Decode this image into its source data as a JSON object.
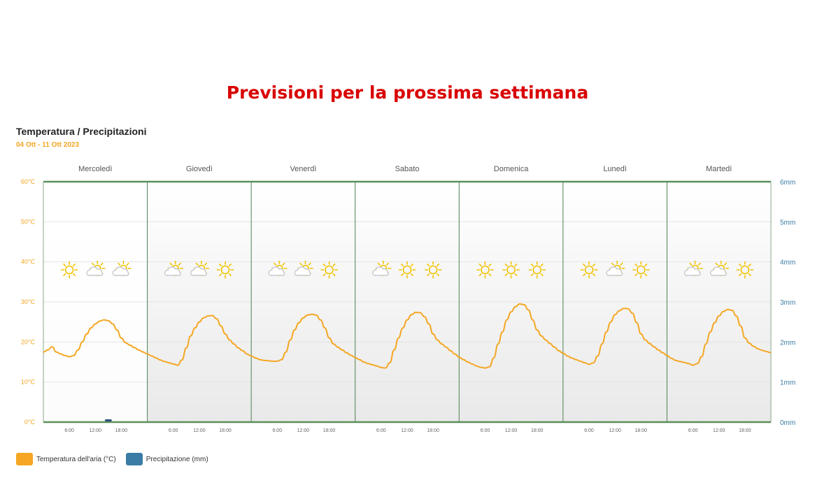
{
  "page": {
    "title": "Previsioni per la prossima settimana"
  },
  "colors": {
    "temperature": "#f5a623",
    "precipitation": "#3a7ca5",
    "precip_bar": "#2f4f7f",
    "axis_green": "#5a8f5a",
    "title_red": "#d90000",
    "sun": "#f2c200",
    "cloud": "#c8c8c8"
  },
  "legend": {
    "temperature_label": "Temperatura dell'aria (°C)",
    "precipitation_label": "Precipitazione (mm)"
  },
  "chart_data": {
    "type": "line",
    "title": "Temperatura / Precipitazioni",
    "subtitle": "04 Ott - 11 Ott 2023",
    "grid": true,
    "days": [
      "Mercoledì",
      "Giovedì",
      "Venerdì",
      "Sabato",
      "Domenica",
      "Lunedì",
      "Martedì"
    ],
    "x_ticks": [
      "6:00",
      "12:00",
      "18:00"
    ],
    "y_left": {
      "ticks": [
        "0°C",
        "10°C",
        "20°C",
        "30°C",
        "40°C",
        "50°C",
        "60°C"
      ],
      "ylim": [
        0,
        60
      ]
    },
    "y_right": {
      "ticks": [
        "0mm",
        "1mm",
        "2mm",
        "3mm",
        "4mm",
        "5mm",
        "6mm"
      ],
      "ylim": [
        0,
        6
      ]
    },
    "weather_icons": [
      [
        "sun",
        "sun-cloud",
        "sun-cloud"
      ],
      [
        "sun-cloud",
        "sun-cloud",
        "sun"
      ],
      [
        "sun-cloud",
        "sun-cloud",
        "sun"
      ],
      [
        "sun-cloud",
        "sun",
        "sun"
      ],
      [
        "sun",
        "sun",
        "sun"
      ],
      [
        "sun",
        "sun-cloud",
        "sun"
      ],
      [
        "sun-cloud",
        "sun-cloud",
        "sun"
      ]
    ],
    "series": [
      {
        "name": "Temperatura dell'aria (°C)",
        "axis": "left",
        "hours": [
          0,
          1,
          2,
          3,
          4,
          5,
          6,
          7,
          8,
          9,
          10,
          11,
          12,
          13,
          14,
          15,
          16,
          17,
          18,
          19,
          20,
          21,
          22,
          23,
          24
        ],
        "days_values": [
          [
            17.5,
            18.0,
            18.8,
            17.5,
            17.0,
            16.6,
            16.3,
            16.6,
            18.0,
            20.0,
            22.0,
            23.5,
            24.5,
            25.2,
            25.5,
            25.3,
            24.5,
            23.0,
            21.0,
            19.8,
            19.2,
            18.6,
            18.0,
            17.5,
            17.0
          ],
          [
            17.0,
            16.5,
            16.0,
            15.5,
            15.1,
            14.8,
            14.5,
            14.2,
            15.5,
            18.5,
            21.5,
            23.5,
            25.0,
            26.0,
            26.5,
            26.6,
            25.8,
            24.0,
            22.0,
            20.5,
            19.5,
            18.5,
            17.8,
            17.0,
            16.5
          ],
          [
            16.5,
            16.0,
            15.6,
            15.4,
            15.3,
            15.2,
            15.2,
            15.6,
            17.5,
            20.5,
            23.0,
            24.8,
            26.0,
            26.7,
            26.9,
            26.7,
            25.5,
            23.5,
            21.0,
            19.5,
            18.7,
            18.0,
            17.3,
            16.7,
            16.1
          ],
          [
            16.1,
            15.6,
            15.0,
            14.6,
            14.3,
            14.0,
            13.6,
            13.5,
            14.8,
            18.0,
            21.0,
            23.5,
            25.5,
            26.8,
            27.4,
            27.3,
            26.3,
            24.5,
            22.0,
            20.5,
            19.5,
            18.7,
            17.8,
            17.0,
            16.2
          ],
          [
            16.2,
            15.6,
            15.0,
            14.5,
            14.0,
            13.7,
            13.5,
            13.8,
            16.0,
            19.5,
            22.5,
            25.5,
            27.5,
            28.8,
            29.5,
            29.3,
            28.0,
            25.5,
            23.0,
            21.5,
            20.5,
            19.6,
            18.7,
            17.8,
            17.2
          ],
          [
            17.2,
            16.5,
            16.0,
            15.6,
            15.2,
            14.8,
            14.4,
            14.8,
            16.5,
            19.5,
            22.5,
            25.0,
            26.8,
            27.8,
            28.4,
            28.3,
            27.2,
            24.8,
            22.0,
            20.5,
            19.6,
            18.8,
            18.0,
            17.3,
            16.6
          ],
          [
            16.6,
            15.9,
            15.4,
            15.1,
            14.9,
            14.6,
            14.2,
            14.6,
            16.3,
            19.5,
            22.5,
            24.8,
            26.5,
            27.6,
            28.1,
            27.9,
            26.5,
            24.0,
            21.0,
            19.7,
            18.9,
            18.3,
            17.9,
            17.6,
            17.3
          ]
        ]
      },
      {
        "name": "Precipitazione (mm)",
        "axis": "right",
        "bars": [
          {
            "day": 0,
            "hour": 15,
            "value": 0.05
          }
        ]
      }
    ]
  }
}
